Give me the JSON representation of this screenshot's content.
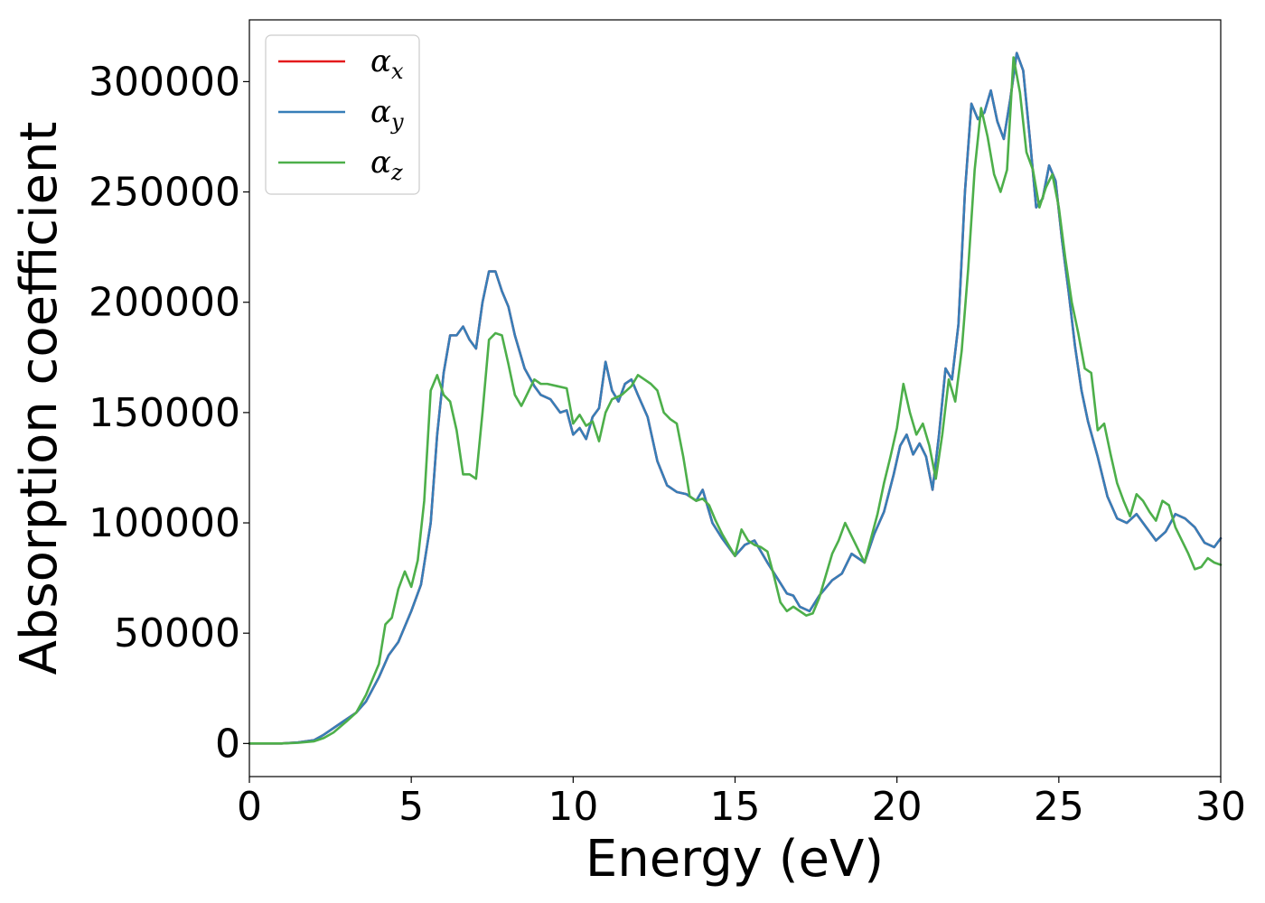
{
  "chart_data": {
    "type": "line",
    "title": "",
    "xlabel": "Energy (eV)",
    "ylabel": "Absorption coefficient",
    "xlim": [
      0,
      30
    ],
    "ylim": [
      -15000,
      328000
    ],
    "xticks": [
      0,
      5,
      10,
      15,
      20,
      25,
      30
    ],
    "yticks": [
      0,
      50000,
      100000,
      150000,
      200000,
      250000,
      300000
    ],
    "grid": false,
    "legend_position": "top-left",
    "series": [
      {
        "name": "αx",
        "symbol": "α",
        "subscript": "x",
        "color": "#e41a1c",
        "x": [
          0,
          1,
          1.5,
          2,
          2.3,
          2.6,
          3,
          3.3,
          3.6,
          4,
          4.3,
          4.6,
          5,
          5.3,
          5.6,
          5.8,
          6,
          6.2,
          6.4,
          6.6,
          6.8,
          7,
          7.2,
          7.4,
          7.6,
          7.8,
          8,
          8.2,
          8.5,
          8.8,
          9,
          9.3,
          9.6,
          9.8,
          10,
          10.2,
          10.4,
          10.6,
          10.8,
          11,
          11.2,
          11.4,
          11.6,
          11.8,
          12,
          12.3,
          12.6,
          12.9,
          13.2,
          13.5,
          13.8,
          14,
          14.3,
          14.6,
          15,
          15.3,
          15.6,
          16,
          16.3,
          16.6,
          16.8,
          17,
          17.3,
          17.6,
          18,
          18.3,
          18.6,
          19,
          19.3,
          19.6,
          19.9,
          20.1,
          20.3,
          20.5,
          20.7,
          20.9,
          21.1,
          21.3,
          21.5,
          21.7,
          21.9,
          22.1,
          22.3,
          22.5,
          22.7,
          22.9,
          23.1,
          23.3,
          23.5,
          23.7,
          23.9,
          24.1,
          24.3,
          24.5,
          24.7,
          24.9,
          25.1,
          25.3,
          25.5,
          25.7,
          25.9,
          26.2,
          26.5,
          26.8,
          27.1,
          27.4,
          27.7,
          28,
          28.3,
          28.6,
          28.9,
          29.2,
          29.5,
          29.8,
          30
        ],
        "y": [
          0,
          0,
          500,
          1500,
          4000,
          7000,
          11000,
          14000,
          19000,
          30000,
          40000,
          46000,
          60000,
          72000,
          100000,
          140000,
          168000,
          185000,
          185000,
          189000,
          183000,
          179000,
          200000,
          214000,
          214000,
          205000,
          198000,
          185000,
          170000,
          162000,
          158000,
          156000,
          150000,
          151000,
          140000,
          143000,
          138000,
          148000,
          152000,
          173000,
          160000,
          155000,
          163000,
          165000,
          158000,
          148000,
          128000,
          117000,
          114000,
          113000,
          110000,
          115000,
          100000,
          93000,
          85000,
          90000,
          92000,
          82000,
          75000,
          68000,
          67000,
          62000,
          60000,
          67000,
          74000,
          77000,
          86000,
          82000,
          95000,
          105000,
          122000,
          135000,
          140000,
          131000,
          136000,
          130000,
          115000,
          140000,
          170000,
          165000,
          190000,
          250000,
          290000,
          283000,
          286000,
          296000,
          282000,
          274000,
          292000,
          313000,
          305000,
          275000,
          243000,
          247000,
          262000,
          255000,
          228000,
          205000,
          180000,
          160000,
          146000,
          130000,
          112000,
          102000,
          100000,
          104000,
          98000,
          92000,
          96000,
          104000,
          102000,
          98000,
          91000,
          89000,
          93000
        ]
      },
      {
        "name": "αy",
        "symbol": "α",
        "subscript": "y",
        "color": "#377eb8",
        "x": [
          0,
          1,
          1.5,
          2,
          2.3,
          2.6,
          3,
          3.3,
          3.6,
          4,
          4.3,
          4.6,
          5,
          5.3,
          5.6,
          5.8,
          6,
          6.2,
          6.4,
          6.6,
          6.8,
          7,
          7.2,
          7.4,
          7.6,
          7.8,
          8,
          8.2,
          8.5,
          8.8,
          9,
          9.3,
          9.6,
          9.8,
          10,
          10.2,
          10.4,
          10.6,
          10.8,
          11,
          11.2,
          11.4,
          11.6,
          11.8,
          12,
          12.3,
          12.6,
          12.9,
          13.2,
          13.5,
          13.8,
          14,
          14.3,
          14.6,
          15,
          15.3,
          15.6,
          16,
          16.3,
          16.6,
          16.8,
          17,
          17.3,
          17.6,
          18,
          18.3,
          18.6,
          19,
          19.3,
          19.6,
          19.9,
          20.1,
          20.3,
          20.5,
          20.7,
          20.9,
          21.1,
          21.3,
          21.5,
          21.7,
          21.9,
          22.1,
          22.3,
          22.5,
          22.7,
          22.9,
          23.1,
          23.3,
          23.5,
          23.7,
          23.9,
          24.1,
          24.3,
          24.5,
          24.7,
          24.9,
          25.1,
          25.3,
          25.5,
          25.7,
          25.9,
          26.2,
          26.5,
          26.8,
          27.1,
          27.4,
          27.7,
          28,
          28.3,
          28.6,
          28.9,
          29.2,
          29.5,
          29.8,
          30
        ],
        "y": [
          0,
          0,
          500,
          1500,
          4000,
          7000,
          11000,
          14000,
          19000,
          30000,
          40000,
          46000,
          60000,
          72000,
          100000,
          140000,
          168000,
          185000,
          185000,
          189000,
          183000,
          179000,
          200000,
          214000,
          214000,
          205000,
          198000,
          185000,
          170000,
          162000,
          158000,
          156000,
          150000,
          151000,
          140000,
          143000,
          138000,
          148000,
          152000,
          173000,
          160000,
          155000,
          163000,
          165000,
          158000,
          148000,
          128000,
          117000,
          114000,
          113000,
          110000,
          115000,
          100000,
          93000,
          85000,
          90000,
          92000,
          82000,
          75000,
          68000,
          67000,
          62000,
          60000,
          67000,
          74000,
          77000,
          86000,
          82000,
          95000,
          105000,
          122000,
          135000,
          140000,
          131000,
          136000,
          130000,
          115000,
          140000,
          170000,
          165000,
          190000,
          250000,
          290000,
          283000,
          286000,
          296000,
          282000,
          274000,
          292000,
          313000,
          305000,
          275000,
          243000,
          247000,
          262000,
          255000,
          228000,
          205000,
          180000,
          160000,
          146000,
          130000,
          112000,
          102000,
          100000,
          104000,
          98000,
          92000,
          96000,
          104000,
          102000,
          98000,
          91000,
          89000,
          93000
        ]
      },
      {
        "name": "αz",
        "symbol": "α",
        "subscript": "z",
        "color": "#4daf4a",
        "x": [
          0,
          1,
          1.5,
          2,
          2.3,
          2.6,
          3,
          3.3,
          3.6,
          4,
          4.2,
          4.4,
          4.6,
          4.8,
          5,
          5.2,
          5.4,
          5.6,
          5.8,
          6,
          6.2,
          6.4,
          6.6,
          6.8,
          7,
          7.2,
          7.4,
          7.6,
          7.8,
          8,
          8.2,
          8.4,
          8.6,
          8.8,
          9,
          9.2,
          9.5,
          9.8,
          10,
          10.2,
          10.4,
          10.6,
          10.8,
          11,
          11.2,
          11.5,
          11.8,
          12,
          12.2,
          12.4,
          12.6,
          12.8,
          13,
          13.2,
          13.4,
          13.6,
          13.8,
          14,
          14.2,
          14.4,
          14.6,
          14.8,
          15,
          15.2,
          15.4,
          15.6,
          15.8,
          16,
          16.2,
          16.4,
          16.6,
          16.8,
          17,
          17.2,
          17.4,
          17.6,
          17.8,
          18,
          18.2,
          18.4,
          18.6,
          18.8,
          19,
          19.2,
          19.4,
          19.6,
          19.8,
          20,
          20.2,
          20.4,
          20.6,
          20.8,
          21,
          21.2,
          21.4,
          21.6,
          21.8,
          22,
          22.2,
          22.4,
          22.6,
          22.8,
          23,
          23.2,
          23.4,
          23.6,
          23.8,
          24,
          24.2,
          24.4,
          24.6,
          24.8,
          25,
          25.2,
          25.4,
          25.6,
          25.8,
          26,
          26.2,
          26.4,
          26.6,
          26.8,
          27,
          27.2,
          27.4,
          27.6,
          27.8,
          28,
          28.2,
          28.4,
          28.6,
          28.8,
          29,
          29.2,
          29.4,
          29.6,
          29.8,
          30
        ],
        "y": [
          0,
          0,
          300,
          1000,
          2500,
          5000,
          10000,
          14000,
          22000,
          36000,
          54000,
          57000,
          70000,
          78000,
          71000,
          83000,
          110000,
          160000,
          167000,
          158000,
          155000,
          142000,
          122000,
          122000,
          120000,
          150000,
          183000,
          186000,
          185000,
          172000,
          158000,
          153000,
          159000,
          165000,
          163000,
          163000,
          162000,
          161000,
          145000,
          149000,
          144000,
          146000,
          137000,
          150000,
          156000,
          158000,
          162000,
          167000,
          165000,
          163000,
          160000,
          150000,
          147000,
          145000,
          130000,
          112000,
          110000,
          111000,
          108000,
          101000,
          95000,
          90000,
          85000,
          97000,
          92000,
          90000,
          89000,
          87000,
          76000,
          64000,
          60000,
          62000,
          60000,
          58000,
          59000,
          66000,
          76000,
          86000,
          92000,
          100000,
          94000,
          88000,
          82000,
          93000,
          104000,
          118000,
          130000,
          143000,
          163000,
          150000,
          140000,
          145000,
          135000,
          120000,
          140000,
          165000,
          155000,
          178000,
          215000,
          260000,
          288000,
          275000,
          258000,
          250000,
          260000,
          311000,
          295000,
          268000,
          260000,
          243000,
          252000,
          258000,
          243000,
          220000,
          200000,
          186000,
          170000,
          168000,
          142000,
          145000,
          131000,
          118000,
          110000,
          103000,
          113000,
          110000,
          105000,
          101000,
          110000,
          108000,
          98000,
          92000,
          86000,
          79000,
          80000,
          84000,
          82000,
          81000
        ]
      }
    ]
  }
}
